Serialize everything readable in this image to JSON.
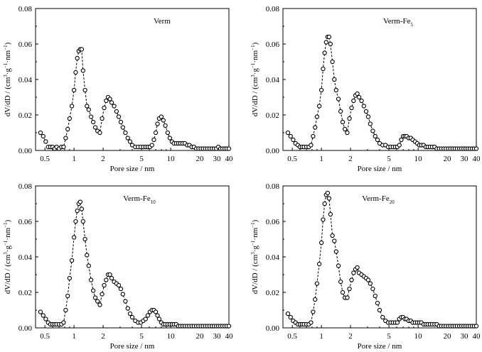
{
  "chart_data": [
    {
      "type": "scatter",
      "title": "Verm",
      "title_subscript": "",
      "xlabel": "Pore size / nm",
      "ylabel_parts": [
        "dV/dD / (cm",
        "3",
        "·g",
        "−1",
        "·nm",
        "−1",
        ")"
      ],
      "x_scale": "log",
      "xlim": [
        0.4,
        40
      ],
      "ylim": [
        0,
        0.08
      ],
      "xticks": [
        0.5,
        1,
        2,
        5,
        10,
        20,
        30,
        40
      ],
      "xtick_labels": [
        "0.5",
        "1",
        "2",
        "5",
        "10",
        "20",
        "30",
        "40"
      ],
      "yticks": [
        0,
        0.02,
        0.04,
        0.06,
        0.08
      ],
      "ytick_labels": [
        "0.00",
        "0.02",
        "0.04",
        "0.06",
        "0.08"
      ],
      "line_style": "dashed",
      "marker": "open-circle",
      "x": [
        0.45,
        0.48,
        0.51,
        0.54,
        0.57,
        0.6,
        0.63,
        0.66,
        0.7,
        0.74,
        0.78,
        0.82,
        0.86,
        0.9,
        0.95,
        1.0,
        1.04,
        1.08,
        1.12,
        1.16,
        1.2,
        1.24,
        1.3,
        1.36,
        1.42,
        1.5,
        1.58,
        1.66,
        1.75,
        1.85,
        1.95,
        2.05,
        2.15,
        2.25,
        2.35,
        2.45,
        2.6,
        2.75,
        2.9,
        3.05,
        3.2,
        3.4,
        3.6,
        3.8,
        4.0,
        4.3,
        4.6,
        4.9,
        5.2,
        5.5,
        5.8,
        6.1,
        6.4,
        6.7,
        7.0,
        7.3,
        7.6,
        8.0,
        8.4,
        8.8,
        9.3,
        9.8,
        10.3,
        10.8,
        11.4,
        12.0,
        12.6,
        13.3,
        14.0,
        14.8,
        15.6,
        16.5,
        17.4,
        18.4,
        19.4,
        20.5,
        21.6,
        22.8,
        24.0,
        25.3,
        26.7,
        28.1,
        29.6,
        31.1,
        32.7,
        34.4,
        36.2,
        38.0,
        40.0
      ],
      "y": [
        0.01,
        0.008,
        0.005,
        0.002,
        0.002,
        0.002,
        0.001,
        0.002,
        0.001,
        0.002,
        0.002,
        0.007,
        0.012,
        0.018,
        0.025,
        0.034,
        0.044,
        0.052,
        0.056,
        0.057,
        0.057,
        0.045,
        0.034,
        0.025,
        0.023,
        0.019,
        0.016,
        0.013,
        0.011,
        0.01,
        0.018,
        0.024,
        0.028,
        0.03,
        0.029,
        0.027,
        0.025,
        0.022,
        0.019,
        0.016,
        0.013,
        0.01,
        0.007,
        0.005,
        0.003,
        0.002,
        0.002,
        0.002,
        0.002,
        0.002,
        0.002,
        0.002,
        0.003,
        0.006,
        0.01,
        0.015,
        0.018,
        0.019,
        0.017,
        0.014,
        0.01,
        0.007,
        0.005,
        0.004,
        0.004,
        0.004,
        0.004,
        0.004,
        0.004,
        0.003,
        0.003,
        0.002,
        0.002,
        0.001,
        0.001,
        0.001,
        0.001,
        0.001,
        0.001,
        0.001,
        0.001,
        0.001,
        0.001,
        0.002,
        0.001,
        0.001,
        0.001,
        0.001,
        0.001
      ]
    },
    {
      "type": "scatter",
      "title": "Verm-Fe",
      "title_subscript": "5",
      "xlabel": "Pore size / nm",
      "ylabel_parts": [
        "dV/dD / (cm",
        "3",
        "·g",
        "−1",
        "·nm",
        "−1",
        ")"
      ],
      "x_scale": "log",
      "xlim": [
        0.4,
        40
      ],
      "ylim": [
        0,
        0.08
      ],
      "xticks": [
        0.5,
        1,
        2,
        5,
        10,
        20,
        30,
        40
      ],
      "xtick_labels": [
        "0.5",
        "1",
        "2",
        "5",
        "10",
        "20",
        "30",
        "40"
      ],
      "yticks": [
        0,
        0.02,
        0.04,
        0.06,
        0.08
      ],
      "ytick_labels": [
        "0.00",
        "0.02",
        "0.04",
        "0.06",
        "0.08"
      ],
      "line_style": "dashed",
      "marker": "open-circle",
      "x": [
        0.45,
        0.48,
        0.51,
        0.54,
        0.57,
        0.6,
        0.63,
        0.66,
        0.7,
        0.74,
        0.78,
        0.82,
        0.86,
        0.9,
        0.95,
        1.0,
        1.04,
        1.08,
        1.12,
        1.16,
        1.2,
        1.24,
        1.3,
        1.36,
        1.42,
        1.5,
        1.58,
        1.66,
        1.75,
        1.85,
        1.95,
        2.05,
        2.15,
        2.25,
        2.35,
        2.45,
        2.6,
        2.75,
        2.9,
        3.05,
        3.2,
        3.4,
        3.6,
        3.8,
        4.0,
        4.3,
        4.6,
        4.9,
        5.2,
        5.5,
        5.8,
        6.1,
        6.4,
        6.7,
        7.0,
        7.3,
        7.6,
        8.0,
        8.4,
        8.8,
        9.3,
        9.8,
        10.3,
        10.8,
        11.4,
        12.0,
        12.6,
        13.3,
        14.0,
        14.8,
        15.6,
        16.5,
        17.4,
        18.4,
        19.4,
        20.5,
        21.6,
        22.8,
        24.0,
        25.3,
        26.7,
        28.1,
        29.6,
        31.1,
        32.7,
        34.4,
        36.2,
        38.0,
        40.0
      ],
      "y": [
        0.01,
        0.008,
        0.006,
        0.004,
        0.003,
        0.002,
        0.002,
        0.002,
        0.002,
        0.002,
        0.003,
        0.008,
        0.013,
        0.019,
        0.025,
        0.034,
        0.046,
        0.055,
        0.061,
        0.064,
        0.064,
        0.06,
        0.05,
        0.04,
        0.034,
        0.029,
        0.022,
        0.016,
        0.012,
        0.01,
        0.018,
        0.024,
        0.028,
        0.031,
        0.032,
        0.03,
        0.028,
        0.025,
        0.022,
        0.019,
        0.015,
        0.011,
        0.008,
        0.006,
        0.004,
        0.003,
        0.003,
        0.002,
        0.002,
        0.002,
        0.002,
        0.002,
        0.003,
        0.006,
        0.008,
        0.008,
        0.008,
        0.007,
        0.007,
        0.006,
        0.005,
        0.004,
        0.003,
        0.003,
        0.003,
        0.002,
        0.002,
        0.002,
        0.002,
        0.002,
        0.001,
        0.001,
        0.001,
        0.001,
        0.001,
        0.001,
        0.001,
        0.001,
        0.001,
        0.001,
        0.001,
        0.001,
        0.001,
        0.001,
        0.001,
        0.001,
        0.001,
        0.001,
        0.001
      ]
    },
    {
      "type": "scatter",
      "title": "Verm-Fe",
      "title_subscript": "10",
      "xlabel": "Pore size / nm",
      "ylabel_parts": [
        "dV/dD / (cm",
        "3",
        "·g",
        "−1",
        "·nm",
        "−1",
        ")"
      ],
      "x_scale": "log",
      "xlim": [
        0.4,
        40
      ],
      "ylim": [
        0,
        0.08
      ],
      "xticks": [
        0.5,
        1,
        2,
        5,
        10,
        20,
        30,
        40
      ],
      "xtick_labels": [
        "0.5",
        "1",
        "2",
        "5",
        "10",
        "20",
        "30",
        "40"
      ],
      "yticks": [
        0,
        0.02,
        0.04,
        0.06,
        0.08
      ],
      "ytick_labels": [
        "0.00",
        "0.02",
        "0.04",
        "0.06",
        "0.08"
      ],
      "line_style": "dashed",
      "marker": "open-circle",
      "x": [
        0.45,
        0.48,
        0.51,
        0.54,
        0.57,
        0.6,
        0.63,
        0.66,
        0.7,
        0.74,
        0.78,
        0.82,
        0.86,
        0.9,
        0.95,
        1.0,
        1.04,
        1.08,
        1.12,
        1.16,
        1.2,
        1.24,
        1.3,
        1.36,
        1.42,
        1.5,
        1.58,
        1.66,
        1.75,
        1.85,
        1.95,
        2.05,
        2.15,
        2.25,
        2.35,
        2.45,
        2.6,
        2.75,
        2.9,
        3.05,
        3.2,
        3.4,
        3.6,
        3.8,
        4.0,
        4.3,
        4.6,
        4.9,
        5.2,
        5.5,
        5.8,
        6.1,
        6.4,
        6.7,
        7.0,
        7.3,
        7.6,
        8.0,
        8.4,
        8.8,
        9.3,
        9.8,
        10.3,
        10.8,
        11.4,
        12.0,
        12.6,
        13.3,
        14.0,
        14.8,
        15.6,
        16.5,
        17.4,
        18.4,
        19.4,
        20.5,
        21.6,
        22.8,
        24.0,
        25.3,
        26.7,
        28.1,
        29.6,
        31.1,
        32.7,
        34.4,
        36.2,
        38.0,
        40.0
      ],
      "y": [
        0.009,
        0.007,
        0.005,
        0.003,
        0.002,
        0.002,
        0.002,
        0.002,
        0.002,
        0.002,
        0.003,
        0.01,
        0.018,
        0.028,
        0.038,
        0.051,
        0.06,
        0.066,
        0.07,
        0.071,
        0.067,
        0.06,
        0.05,
        0.041,
        0.035,
        0.027,
        0.021,
        0.017,
        0.015,
        0.013,
        0.019,
        0.024,
        0.027,
        0.03,
        0.03,
        0.028,
        0.026,
        0.025,
        0.024,
        0.022,
        0.019,
        0.015,
        0.011,
        0.008,
        0.006,
        0.004,
        0.003,
        0.003,
        0.004,
        0.005,
        0.007,
        0.009,
        0.01,
        0.01,
        0.009,
        0.007,
        0.005,
        0.003,
        0.002,
        0.002,
        0.002,
        0.002,
        0.002,
        0.002,
        0.002,
        0.001,
        0.001,
        0.001,
        0.001,
        0.001,
        0.001,
        0.001,
        0.001,
        0.001,
        0.001,
        0.001,
        0.001,
        0.001,
        0.001,
        0.001,
        0.001,
        0.001,
        0.001,
        0.001,
        0.001,
        0.001,
        0.001,
        0.001,
        0.001
      ]
    },
    {
      "type": "scatter",
      "title": "Verm-Fe",
      "title_subscript": "20",
      "xlabel": "Pore size / nm",
      "ylabel_parts": [
        "dV/dD / (cm",
        "3",
        "·g",
        "−1",
        "·nm",
        "−1",
        ")"
      ],
      "x_scale": "log",
      "xlim": [
        0.4,
        40
      ],
      "ylim": [
        0,
        0.08
      ],
      "xticks": [
        0.5,
        1,
        2,
        5,
        10,
        20,
        30,
        40
      ],
      "xtick_labels": [
        "0.5",
        "1",
        "2",
        "5",
        "10",
        "20",
        "30",
        "40"
      ],
      "yticks": [
        0,
        0.02,
        0.04,
        0.06,
        0.08
      ],
      "ytick_labels": [
        "0.00",
        "0.02",
        "0.04",
        "0.06",
        "0.08"
      ],
      "line_style": "dashed",
      "marker": "open-circle",
      "x": [
        0.45,
        0.48,
        0.51,
        0.54,
        0.57,
        0.6,
        0.63,
        0.66,
        0.7,
        0.74,
        0.78,
        0.82,
        0.86,
        0.9,
        0.95,
        1.0,
        1.04,
        1.08,
        1.12,
        1.16,
        1.2,
        1.24,
        1.3,
        1.36,
        1.42,
        1.5,
        1.58,
        1.66,
        1.75,
        1.85,
        1.95,
        2.05,
        2.15,
        2.25,
        2.35,
        2.45,
        2.6,
        2.75,
        2.9,
        3.05,
        3.2,
        3.4,
        3.6,
        3.8,
        4.0,
        4.3,
        4.6,
        4.9,
        5.2,
        5.5,
        5.8,
        6.1,
        6.4,
        6.7,
        7.0,
        7.3,
        7.6,
        8.0,
        8.4,
        8.8,
        9.3,
        9.8,
        10.3,
        10.8,
        11.4,
        12.0,
        12.6,
        13.3,
        14.0,
        14.8,
        15.6,
        16.5,
        17.4,
        18.4,
        19.4,
        20.5,
        21.6,
        22.8,
        24.0,
        25.3,
        26.7,
        28.1,
        29.6,
        31.1,
        32.7,
        34.4,
        36.2,
        38.0,
        40.0
      ],
      "y": [
        0.008,
        0.006,
        0.004,
        0.003,
        0.002,
        0.002,
        0.002,
        0.002,
        0.002,
        0.002,
        0.003,
        0.009,
        0.016,
        0.025,
        0.036,
        0.048,
        0.061,
        0.07,
        0.075,
        0.076,
        0.073,
        0.064,
        0.052,
        0.049,
        0.043,
        0.035,
        0.026,
        0.02,
        0.017,
        0.017,
        0.022,
        0.027,
        0.031,
        0.033,
        0.034,
        0.031,
        0.03,
        0.029,
        0.028,
        0.027,
        0.025,
        0.022,
        0.018,
        0.014,
        0.01,
        0.006,
        0.004,
        0.003,
        0.003,
        0.003,
        0.003,
        0.003,
        0.005,
        0.006,
        0.006,
        0.005,
        0.005,
        0.004,
        0.004,
        0.003,
        0.003,
        0.003,
        0.003,
        0.003,
        0.002,
        0.002,
        0.002,
        0.002,
        0.002,
        0.002,
        0.002,
        0.001,
        0.001,
        0.001,
        0.001,
        0.001,
        0.001,
        0.001,
        0.001,
        0.001,
        0.001,
        0.001,
        0.001,
        0.001,
        0.001,
        0.001,
        0.001,
        0.001,
        0.001
      ]
    }
  ]
}
